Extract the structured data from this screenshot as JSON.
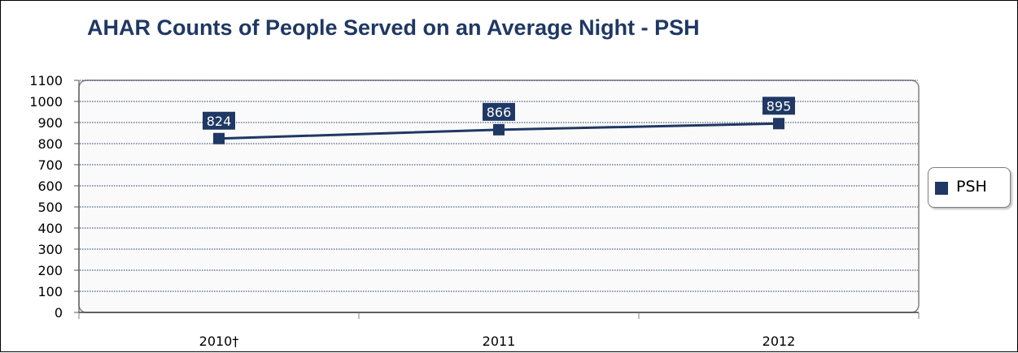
{
  "chart_data": {
    "type": "line",
    "title": "AHAR Counts of People Served on an Average Night - PSH",
    "categories": [
      "2010†",
      "2011",
      "2012"
    ],
    "series": [
      {
        "name": "PSH",
        "values": [
          824,
          866,
          895
        ]
      }
    ],
    "ylim": [
      0,
      1100
    ],
    "yticks": [
      0,
      100,
      200,
      300,
      400,
      500,
      600,
      700,
      800,
      900,
      1000,
      1100
    ],
    "grid": true,
    "legend_position": "right",
    "data_labels": true,
    "colors": {
      "series": "#1f3864",
      "grid": "#1f3864",
      "plot_background": "#fafafa"
    }
  }
}
